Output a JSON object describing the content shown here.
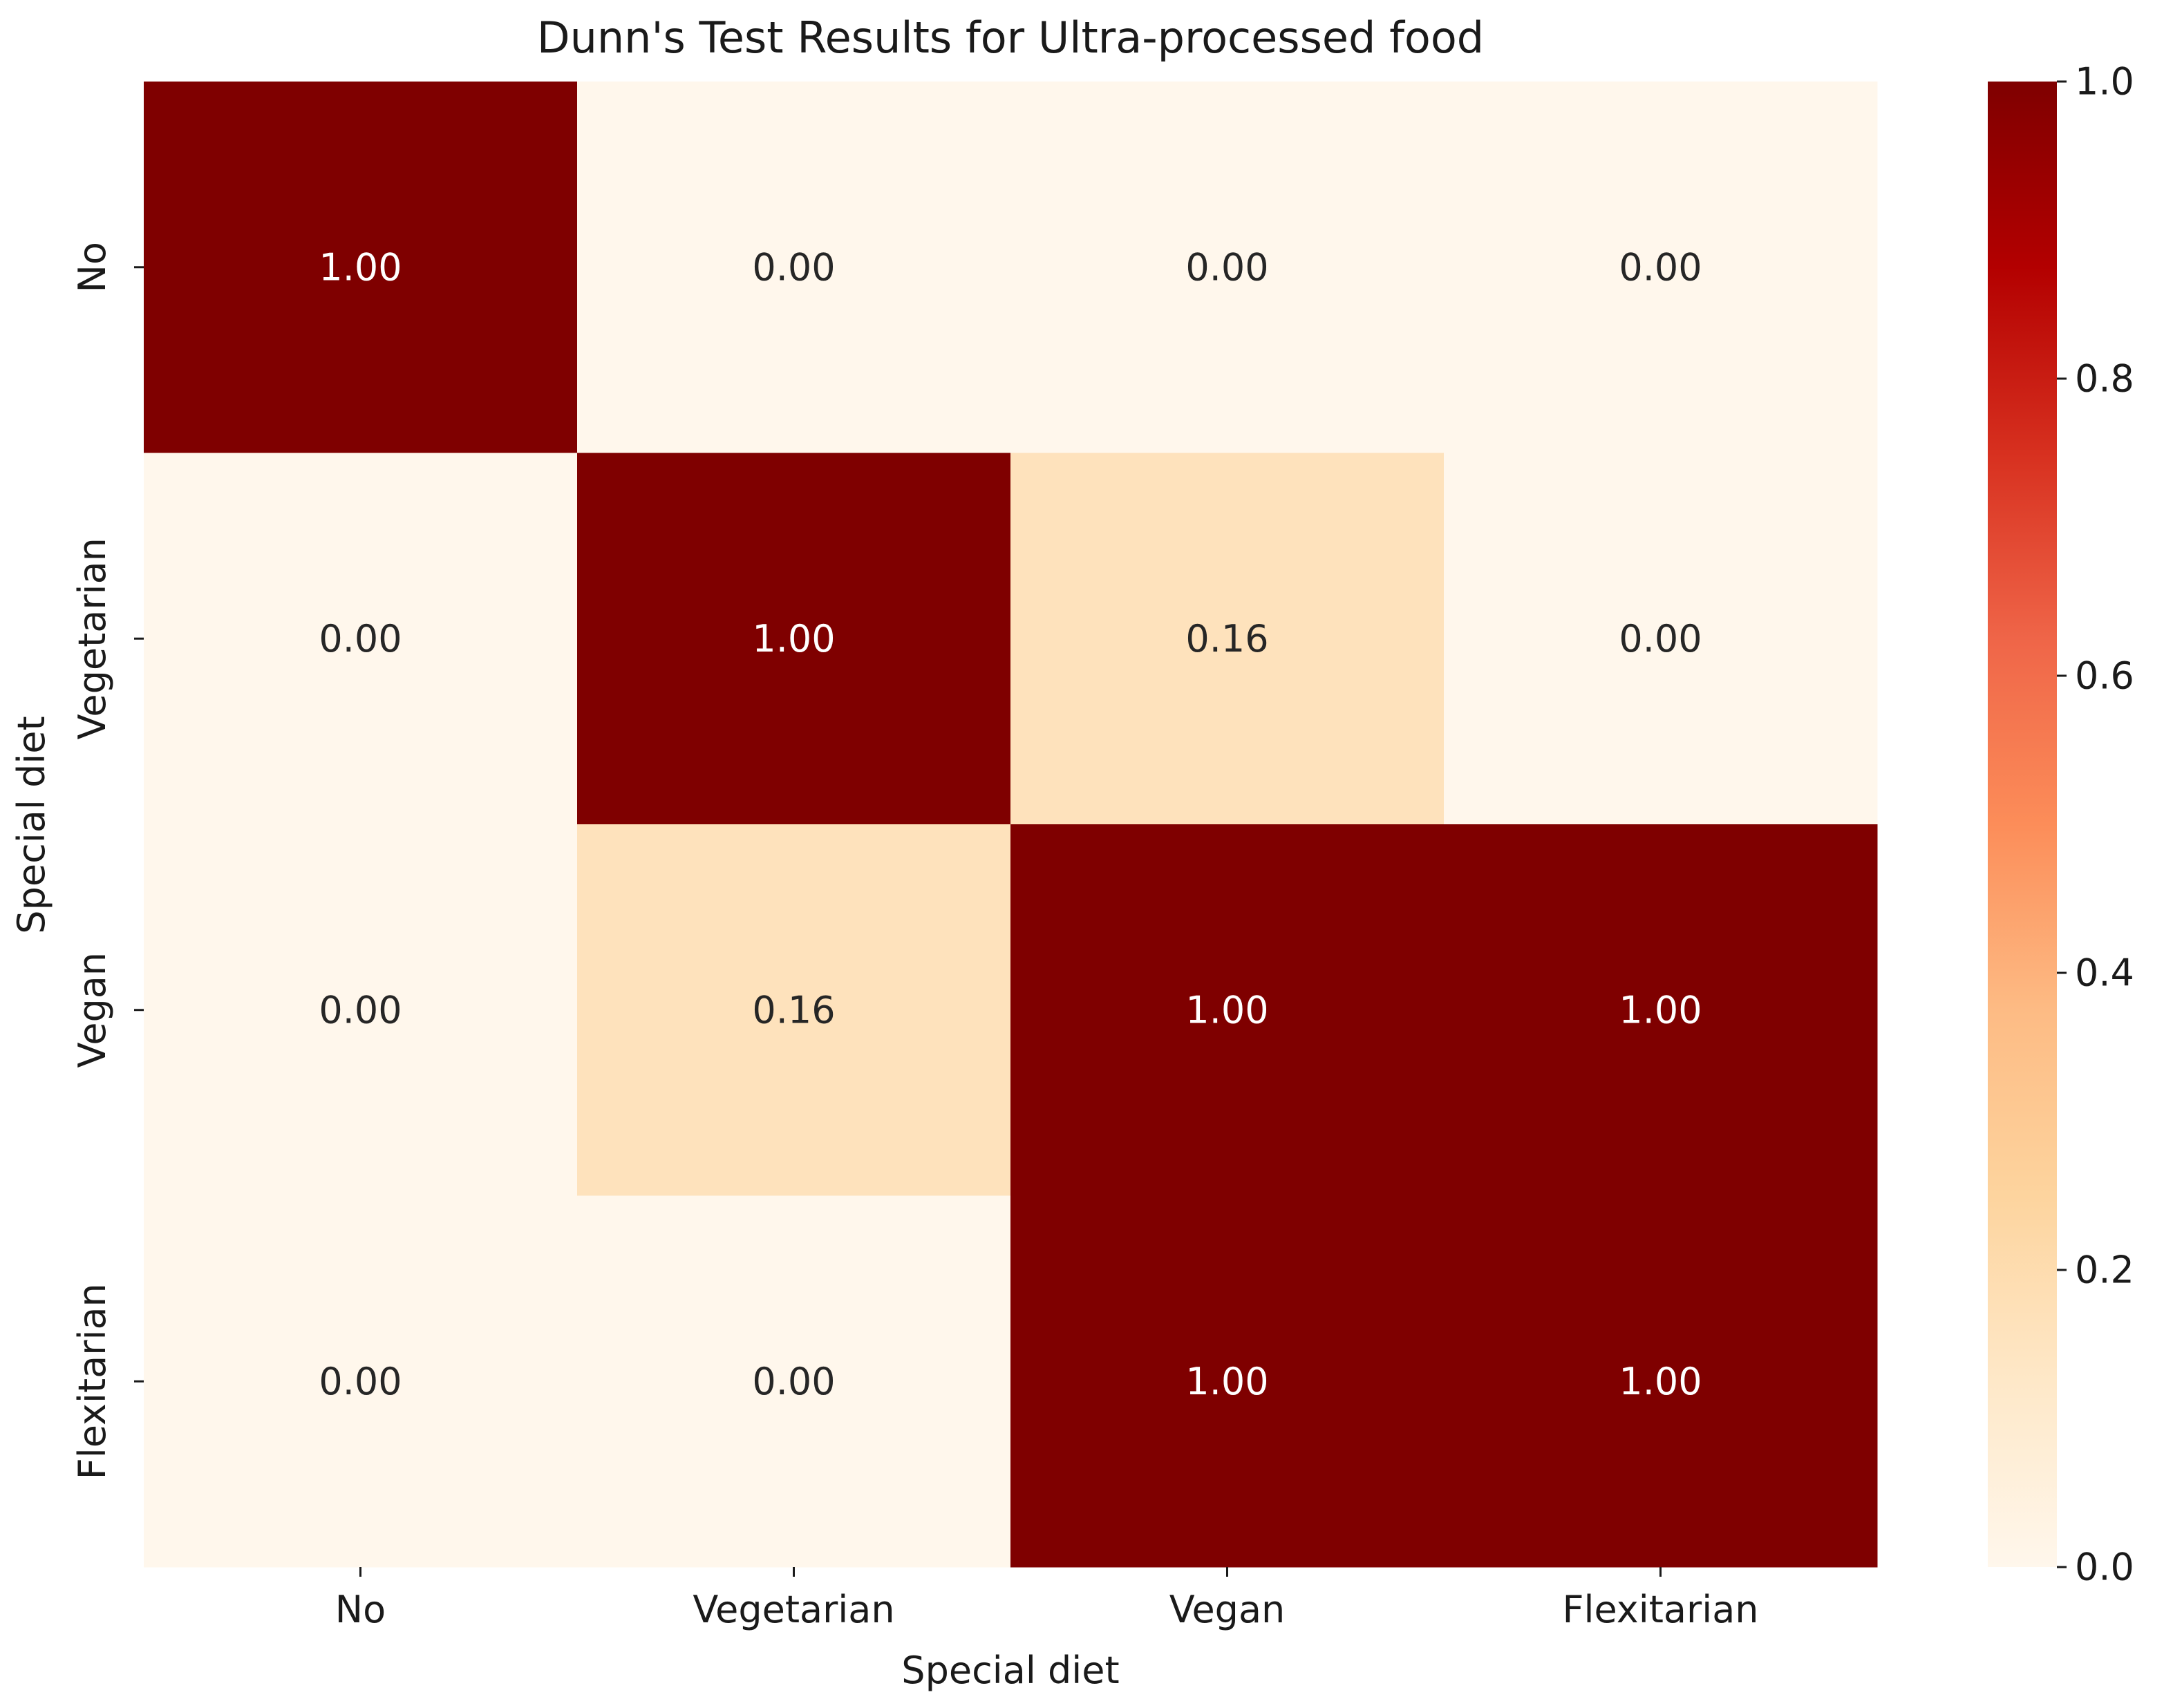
{
  "chart_data": {
    "type": "heatmap",
    "title": "Dunn's Test Results for Ultra-processed food",
    "xlabel": "Special diet",
    "ylabel": "Special diet",
    "x_categories": [
      "No",
      "Vegetarian",
      "Vegan",
      "Flexitarian"
    ],
    "y_categories": [
      "No",
      "Vegetarian",
      "Vegan",
      "Flexitarian"
    ],
    "values": [
      [
        1.0,
        0.0,
        0.0,
        0.0
      ],
      [
        0.0,
        1.0,
        0.16,
        0.0
      ],
      [
        0.0,
        0.16,
        1.0,
        1.0
      ],
      [
        0.0,
        0.0,
        1.0,
        1.0
      ]
    ],
    "value_format": "0.00",
    "colorscale": "OrRd",
    "colorscale_stops": [
      "#fff7ec",
      "#fee8c8",
      "#fdd49e",
      "#fdbb84",
      "#fc8d59",
      "#ef6548",
      "#d7301f",
      "#b30000",
      "#7f0000"
    ],
    "vmin": 0.0,
    "vmax": 1.0,
    "colorbar_ticks": [
      "0.0",
      "0.2",
      "0.4",
      "0.6",
      "0.8",
      "1.0"
    ],
    "grid": false
  }
}
